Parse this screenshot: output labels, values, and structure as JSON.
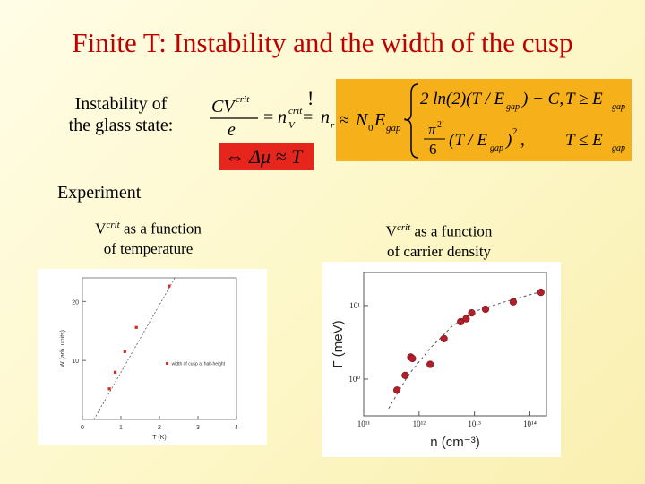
{
  "slide": {
    "title": "Finite T: Instability and the width of the cusp",
    "instability_label_line1": "Instability of",
    "instability_label_line2": "the glass state:",
    "experiment_label": "Experiment"
  },
  "equation": {
    "lhs_numerator": "CV",
    "lhs_sup": "crit",
    "lhs_denominator": "e",
    "eq1": "=",
    "n_v": "n",
    "n_v_sub": "V",
    "n_v_sup": "crit",
    "eq2": "=",
    "bang": "!",
    "n_r": "n",
    "n_r_sub": "r",
    "approx": "≈",
    "n0egap": "N",
    "n0_sub": "0",
    "egap_e": "E",
    "egap_sub": "gap",
    "dot": "·",
    "case1_expr": "2 ln(2)(T / E",
    "case1_sub": "gap",
    "case1_tail": ") − C,",
    "case1_cond": "T ≥ E",
    "case1_cond_sub": "gap",
    "case2_num": "π",
    "case2_num_sup": "2",
    "case2_den": "6",
    "case2_expr": "(T / E",
    "case2_sub": "gap",
    "case2_tail": ")",
    "case2_sup": "2",
    "case2_comma": ",",
    "case2_cond": "T ≤ E",
    "case2_cond_sub": "gap",
    "implication": "⇔ Δμ ≈ T",
    "colors": {
      "box": "#f5b01a",
      "red_box": "#e6261c"
    }
  },
  "left_caption": {
    "v": "V",
    "sup": "crit",
    "line1_tail": " as a function",
    "line2": "of temperature"
  },
  "right_caption": {
    "v": "V",
    "sup": "crit",
    "line1_tail": " as a function",
    "line2": "of carrier density"
  },
  "chart_data": [
    {
      "type": "scatter",
      "title": "",
      "xlabel": "T (K)",
      "ylabel": "W (arb. units)",
      "xlim": [
        0,
        4
      ],
      "ylim": [
        0,
        24
      ],
      "x_ticks": [
        "0",
        "1",
        "2",
        "3",
        "4"
      ],
      "y_ticks": [
        "10",
        "20"
      ],
      "legend": "width of cusp at half-height",
      "legend_position": "right",
      "series": [
        {
          "name": "width of cusp at half-height",
          "points": [
            [
              0.7,
              5.2
            ],
            [
              0.85,
              8.0
            ],
            [
              1.1,
              11.5
            ],
            [
              1.4,
              15.6
            ],
            [
              2.25,
              22.6
            ]
          ],
          "color": "#d9261c"
        }
      ],
      "fit_line": [
        [
          0.3,
          0
        ],
        [
          2.4,
          24
        ]
      ]
    },
    {
      "type": "scatter",
      "title": "",
      "xlabel": "n (cm⁻³)",
      "ylabel": "Γ (meV)",
      "x_scale": "log",
      "y_scale": "log",
      "x_ticks": [
        "10¹¹",
        "10¹²",
        "10¹³",
        "10¹⁴"
      ],
      "y_ticks": [
        "10⁰",
        "10¹"
      ],
      "x_log_range": [
        11,
        14.3
      ],
      "y_log_range": [
        -0.5,
        1.45
      ],
      "series": [
        {
          "points_log": [
            [
              11.6,
              -0.15
            ],
            [
              11.75,
              0.05
            ],
            [
              11.85,
              0.3
            ],
            [
              11.88,
              0.28
            ],
            [
              12.2,
              0.2
            ],
            [
              12.45,
              0.55
            ],
            [
              12.75,
              0.78
            ],
            [
              12.85,
              0.82
            ],
            [
              12.95,
              0.9
            ],
            [
              13.2,
              0.95
            ],
            [
              13.7,
              1.05
            ],
            [
              14.2,
              1.18
            ]
          ],
          "color": "#b0202a"
        }
      ],
      "fit_curve_log": [
        [
          11.45,
          -0.4
        ],
        [
          11.8,
          0.05
        ],
        [
          12.2,
          0.42
        ],
        [
          12.6,
          0.72
        ],
        [
          13.0,
          0.92
        ],
        [
          13.5,
          1.04
        ],
        [
          14.25,
          1.2
        ]
      ]
    }
  ]
}
